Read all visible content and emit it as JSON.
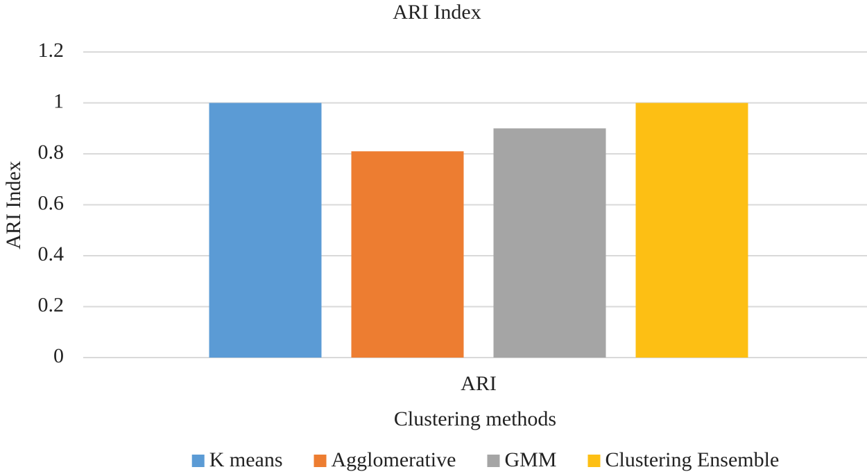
{
  "chart_data": {
    "type": "bar",
    "title": "ARI Index",
    "x_label": "Clustering methods",
    "y_label": "ARI Index",
    "categories": [
      "ARI"
    ],
    "series": [
      {
        "name": "K means",
        "color": "#5b9bd5",
        "values": [
          1
        ]
      },
      {
        "name": "Agglomerative",
        "color": "#ed7d31",
        "values": [
          0.81
        ]
      },
      {
        "name": "GMM",
        "color": "#a5a5a5",
        "values": [
          0.9
        ]
      },
      {
        "name": "Clustering Ensemble",
        "color": "#fdbf14",
        "values": [
          1
        ]
      }
    ],
    "ylim": [
      0,
      1.2
    ],
    "yticks": [
      0,
      0.2,
      0.4,
      0.6,
      0.8,
      1,
      1.2
    ],
    "grid": true,
    "legend": "bottom"
  }
}
